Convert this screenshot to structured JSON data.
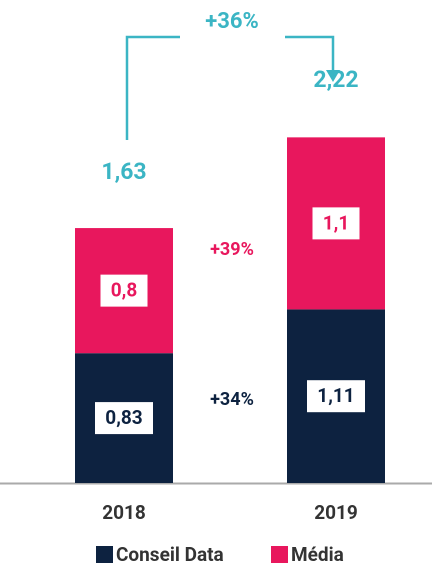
{
  "chart_data": {
    "type": "stacked_bar",
    "categories": [
      "2018",
      "2019"
    ],
    "series": [
      {
        "name": "Conseil Data",
        "color": "#0d2240",
        "values": [
          0.83,
          1.11
        ],
        "value_labels": [
          "0,83",
          "1,11"
        ]
      },
      {
        "name": "Média",
        "color": "#e8175d",
        "values": [
          0.8,
          1.1
        ],
        "value_labels": [
          "0,8",
          "1,1"
        ]
      }
    ],
    "totals": [
      1.63,
      2.22
    ],
    "total_labels": [
      "1,63",
      "2,22"
    ],
    "total_color": "#3bb5c4",
    "ylim": [
      0,
      2.5
    ],
    "annotations": {
      "growth_total": "+36%",
      "growth_media": "+39%",
      "growth_data": "+34%"
    }
  }
}
